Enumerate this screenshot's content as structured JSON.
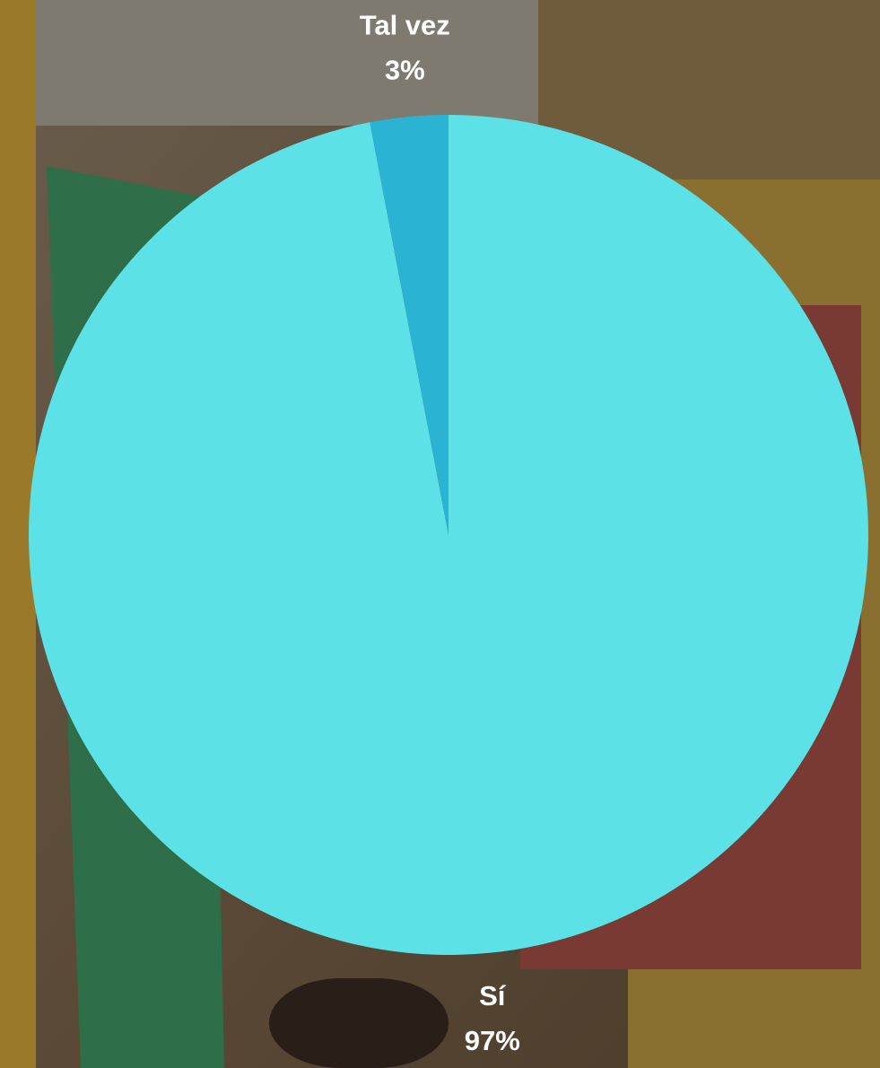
{
  "chart_data": {
    "type": "pie",
    "categories": [
      "Sí",
      "Tal vez"
    ],
    "series": [
      {
        "values": [
          97,
          3
        ],
        "value_labels": [
          "97%",
          "3%"
        ],
        "colors": [
          "#5ce1e6",
          "#2bb3d4"
        ]
      }
    ]
  }
}
